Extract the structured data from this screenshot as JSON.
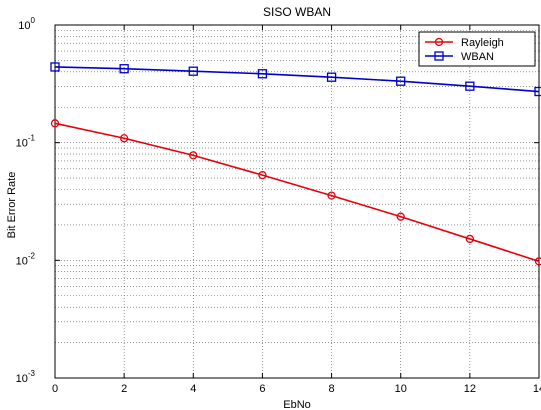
{
  "chart_data": {
    "type": "line",
    "title": "SISO WBAN",
    "xlabel": "EbNo",
    "ylabel": "Bit Error Rate",
    "x": [
      0,
      2,
      4,
      6,
      8,
      10,
      12,
      14
    ],
    "xlim": [
      0,
      14
    ],
    "ylim": [
      0.001,
      1
    ],
    "yscale": "log",
    "grid": true,
    "legend_position": "top-right",
    "x_tick_labels": [
      "0",
      "2",
      "4",
      "6",
      "8",
      "10",
      "12",
      "14"
    ],
    "y_tick_labels": [
      {
        "base": "10",
        "exp": "0",
        "value": 1
      },
      {
        "base": "10",
        "exp": "-1",
        "value": 0.1
      },
      {
        "base": "10",
        "exp": "-2",
        "value": 0.01
      },
      {
        "base": "10",
        "exp": "-3",
        "value": 0.001
      }
    ],
    "series": [
      {
        "name": "Rayleigh",
        "color": "#e8000b",
        "marker": "circle",
        "values": [
          0.146,
          0.109,
          0.078,
          0.053,
          0.0355,
          0.0235,
          0.0152,
          0.0098
        ]
      },
      {
        "name": "WBAN",
        "color": "#0000cc",
        "marker": "square",
        "values": [
          0.44,
          0.425,
          0.405,
          0.385,
          0.36,
          0.333,
          0.302,
          0.272
        ]
      }
    ]
  }
}
